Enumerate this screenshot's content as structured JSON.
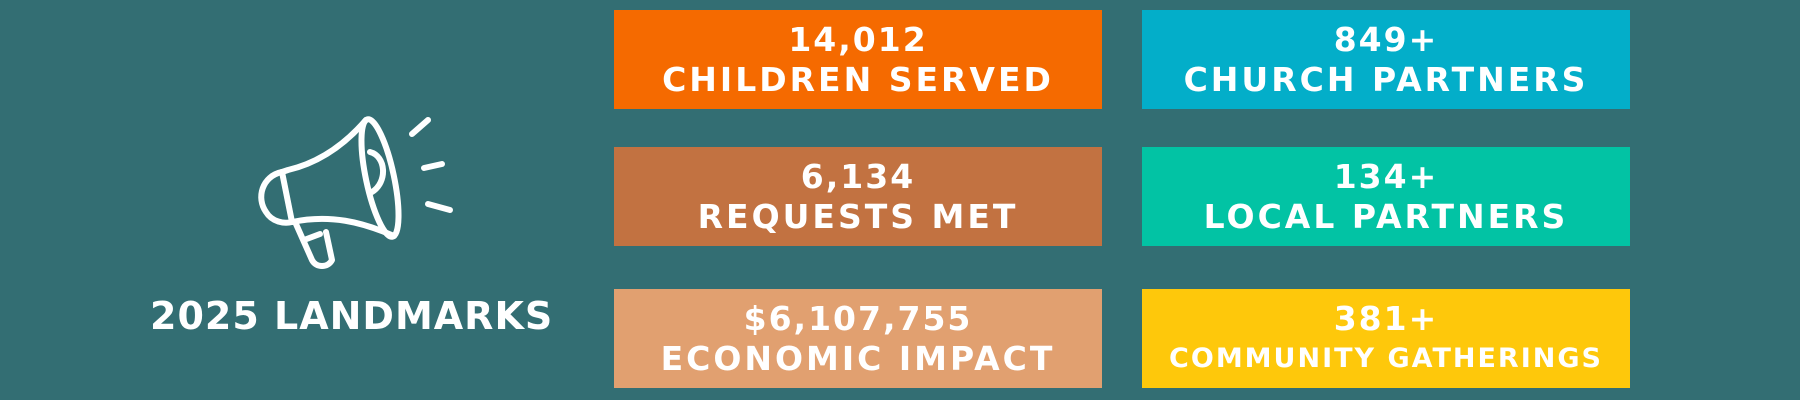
{
  "heading": "2025 LANDMARKS",
  "icon": "megaphone-icon",
  "stats": [
    {
      "value": "14,012",
      "label": "CHILDREN SERVED",
      "color": "#f56a00"
    },
    {
      "value": "849+",
      "label": "CHURCH PARTNERS",
      "color": "#03aec9"
    },
    {
      "value": "6,134",
      "label": "REQUESTS MET",
      "color": "#c27241"
    },
    {
      "value": "134+",
      "label": "LOCAL PARTNERS",
      "color": "#02c3a4"
    },
    {
      "value": "$6,107,755",
      "label": "ECONOMIC IMPACT",
      "color": "#e1a070"
    },
    {
      "value": "381+",
      "label": "COMMUNITY GATHERINGS",
      "color": "#fec80b"
    }
  ],
  "colors": {
    "background": "#336e73",
    "text": "#ffffff"
  }
}
